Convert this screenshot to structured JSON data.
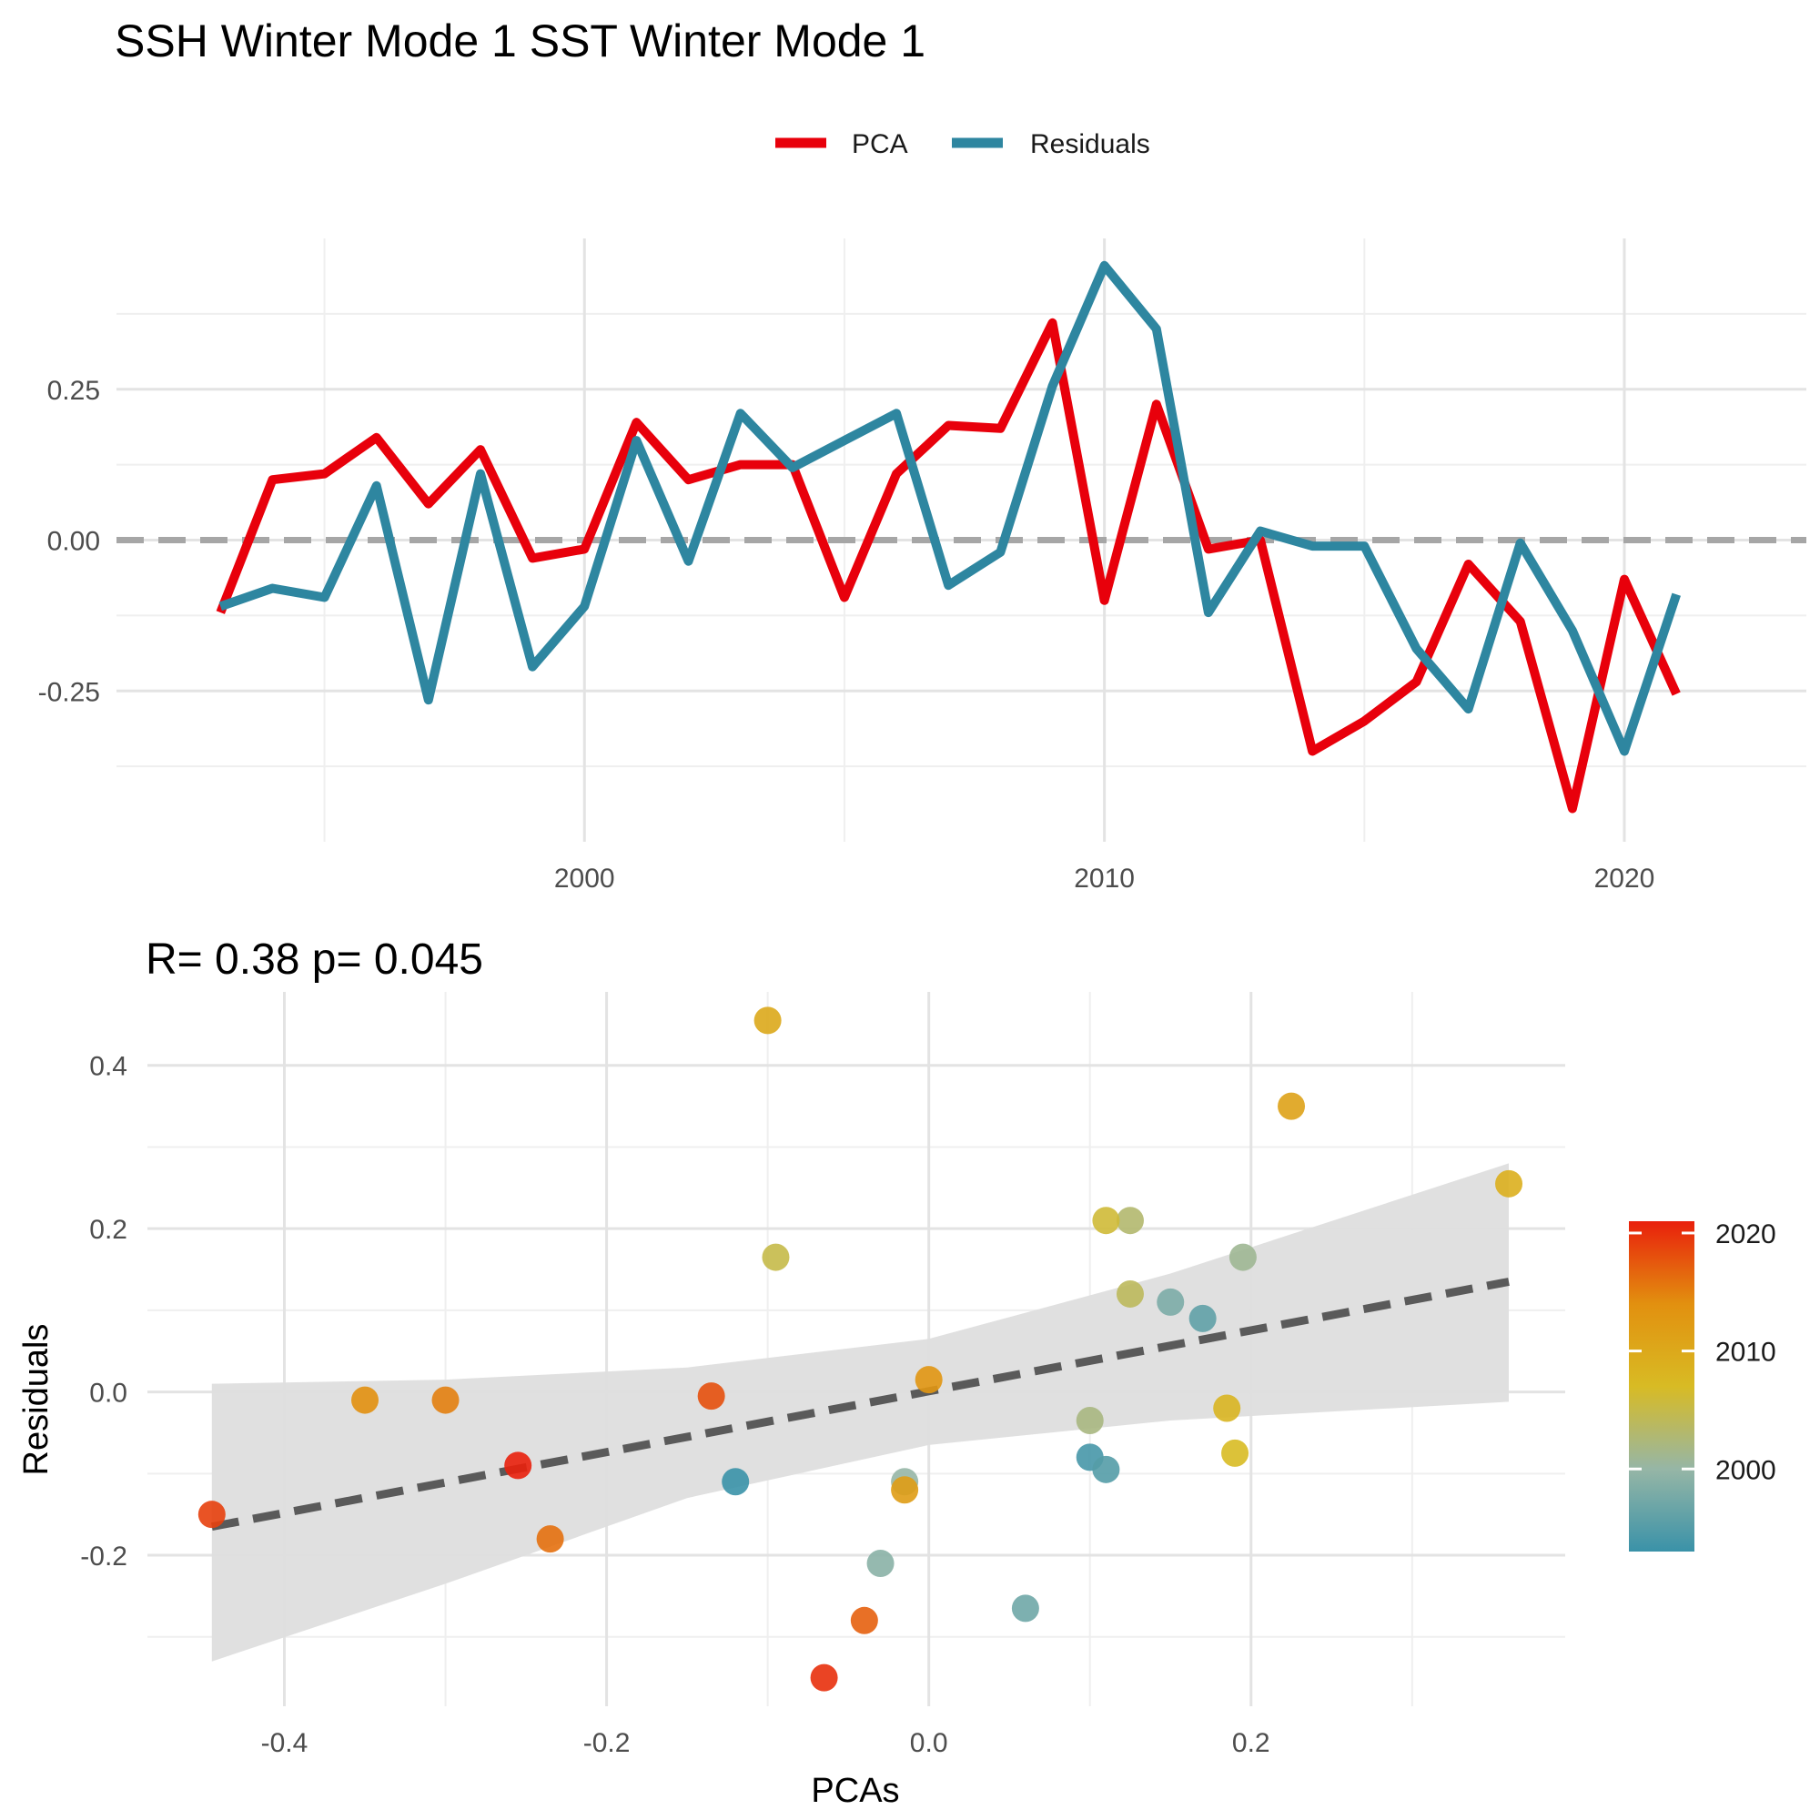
{
  "page_title": "SSH Winter Mode 1 SST Winter Mode 1",
  "colors": {
    "pca": "#e8000b",
    "residuals": "#2e86a0",
    "grid_major": "#e3e3e3",
    "grid_minor": "#efefef",
    "zero_line": "#a6a6a6",
    "fit_line": "#5a5a5a",
    "ribbon": "#dedede",
    "gradient": [
      "#3a92a8",
      "#96b6a6",
      "#d8bb24",
      "#e2900f",
      "#e9200c"
    ]
  },
  "chart_data": [
    {
      "type": "line",
      "title": "SSH Winter Mode 1 SST Winter Mode 1",
      "legend": {
        "position": "top",
        "entries": [
          "PCA",
          "Residuals"
        ]
      },
      "x": [
        1993,
        1994,
        1995,
        1996,
        1997,
        1998,
        1999,
        2000,
        2001,
        2002,
        2003,
        2004,
        2005,
        2006,
        2007,
        2008,
        2009,
        2010,
        2011,
        2012,
        2013,
        2014,
        2015,
        2016,
        2017,
        2018,
        2019,
        2020,
        2021
      ],
      "series": [
        {
          "name": "PCA",
          "values": [
            -0.12,
            0.1,
            0.11,
            0.17,
            0.06,
            0.15,
            -0.03,
            -0.015,
            0.195,
            0.1,
            0.125,
            0.125,
            -0.095,
            0.11,
            0.19,
            0.185,
            0.36,
            -0.1,
            0.225,
            -0.015,
            0.0,
            -0.35,
            -0.3,
            -0.235,
            -0.04,
            -0.135,
            -0.445,
            -0.065,
            -0.255
          ]
        },
        {
          "name": "Residuals",
          "values": [
            -0.11,
            -0.08,
            -0.095,
            0.09,
            -0.265,
            0.11,
            -0.21,
            -0.11,
            0.165,
            -0.035,
            0.21,
            0.12,
            0.165,
            0.21,
            -0.075,
            -0.02,
            0.255,
            0.455,
            0.35,
            -0.12,
            0.015,
            -0.01,
            -0.01,
            -0.18,
            -0.28,
            -0.005,
            -0.15,
            -0.35,
            -0.09
          ]
        }
      ],
      "xticks": [
        2000,
        2010,
        2020
      ],
      "yticks": [
        -0.25,
        0.0,
        0.25
      ],
      "ytick_labels": [
        "-0.25",
        "0.00",
        "0.25"
      ],
      "xlim": [
        1991,
        2023.5
      ],
      "ylim": [
        -0.5,
        0.5
      ],
      "reference_line": 0,
      "grid": true
    },
    {
      "type": "scatter",
      "title": "R= 0.38  p= 0.045",
      "xlabel": "PCAs",
      "ylabel": "Residuals",
      "xlim": [
        -0.485,
        0.395
      ],
      "ylim": [
        -0.385,
        0.49
      ],
      "xticks": [
        -0.4,
        -0.2,
        0.0,
        0.2
      ],
      "xtick_labels": [
        "-0.4",
        "-0.2",
        "0.0",
        "0.2"
      ],
      "yticks": [
        -0.2,
        0.0,
        0.2,
        0.4
      ],
      "ytick_labels": [
        "-0.2",
        "0.0",
        "0.2",
        "0.4"
      ],
      "grid": true,
      "points": [
        {
          "x": -0.12,
          "y": -0.11,
          "year": 1993
        },
        {
          "x": 0.1,
          "y": -0.08,
          "year": 1994
        },
        {
          "x": 0.11,
          "y": -0.095,
          "year": 1995
        },
        {
          "x": 0.17,
          "y": 0.09,
          "year": 1996
        },
        {
          "x": 0.06,
          "y": -0.265,
          "year": 1997
        },
        {
          "x": 0.15,
          "y": 0.11,
          "year": 1998
        },
        {
          "x": -0.03,
          "y": -0.21,
          "year": 1999
        },
        {
          "x": -0.015,
          "y": -0.11,
          "year": 2000
        },
        {
          "x": 0.195,
          "y": 0.165,
          "year": 2001
        },
        {
          "x": 0.1,
          "y": -0.035,
          "year": 2002
        },
        {
          "x": 0.125,
          "y": 0.21,
          "year": 2003
        },
        {
          "x": 0.125,
          "y": 0.12,
          "year": 2004
        },
        {
          "x": -0.095,
          "y": 0.165,
          "year": 2005
        },
        {
          "x": 0.11,
          "y": 0.21,
          "year": 2006
        },
        {
          "x": 0.19,
          "y": -0.075,
          "year": 2007
        },
        {
          "x": 0.185,
          "y": -0.02,
          "year": 2008
        },
        {
          "x": 0.36,
          "y": 0.255,
          "year": 2009
        },
        {
          "x": -0.1,
          "y": 0.455,
          "year": 2010
        },
        {
          "x": 0.225,
          "y": 0.35,
          "year": 2011
        },
        {
          "x": -0.015,
          "y": -0.12,
          "year": 2012
        },
        {
          "x": 0.0,
          "y": 0.015,
          "year": 2013
        },
        {
          "x": -0.35,
          "y": -0.01,
          "year": 2014
        },
        {
          "x": -0.3,
          "y": -0.01,
          "year": 2015
        },
        {
          "x": -0.235,
          "y": -0.18,
          "year": 2016
        },
        {
          "x": -0.04,
          "y": -0.28,
          "year": 2017
        },
        {
          "x": -0.135,
          "y": -0.005,
          "year": 2018
        },
        {
          "x": -0.445,
          "y": -0.15,
          "year": 2019
        },
        {
          "x": -0.065,
          "y": -0.35,
          "year": 2020
        },
        {
          "x": -0.255,
          "y": -0.09,
          "year": 2021
        }
      ],
      "fit": {
        "x": [
          -0.445,
          0.36
        ],
        "y": [
          -0.165,
          0.135
        ],
        "ribbon": [
          {
            "x": -0.445,
            "lo": -0.33,
            "hi": 0.01
          },
          {
            "x": -0.3,
            "lo": -0.235,
            "hi": 0.015
          },
          {
            "x": -0.15,
            "lo": -0.13,
            "hi": 0.03
          },
          {
            "x": 0.0,
            "lo": -0.065,
            "hi": 0.065
          },
          {
            "x": 0.15,
            "lo": -0.035,
            "hi": 0.145
          },
          {
            "x": 0.36,
            "lo": -0.012,
            "hi": 0.28
          }
        ]
      },
      "colorbar": {
        "min": 1993,
        "max": 2021,
        "ticks": [
          2000,
          2010,
          2020
        ],
        "tick_labels": [
          "2000",
          "2010",
          "2020"
        ]
      }
    }
  ]
}
